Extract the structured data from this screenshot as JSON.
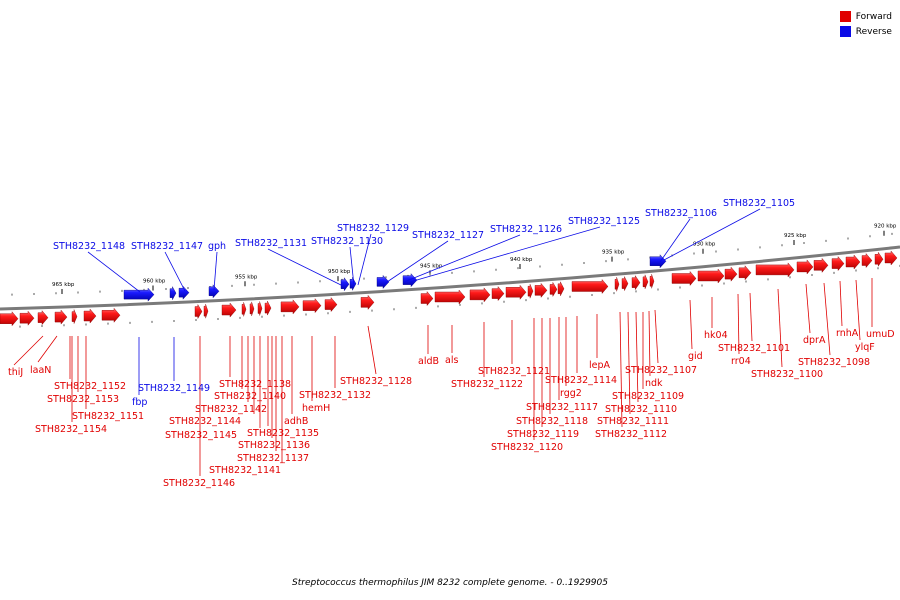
{
  "legend": {
    "forward_label": "Forward",
    "reverse_label": "Reverse",
    "forward_color": "#e00000",
    "reverse_color": "#0a0ae6"
  },
  "caption": "Streptococcus thermophilus JIM 8232 complete genome. - 0..1929905",
  "axis_ticks": [
    "965 kbp",
    "960 kbp",
    "955 kbp",
    "950 kbp",
    "945 kbp",
    "940 kbp",
    "935 kbp",
    "930 kbp",
    "925 kbp",
    "920 kbp"
  ],
  "reverse_genes": [
    "STH8232_1148",
    "STH8232_1147",
    "gph",
    "STH8232_1131",
    "STH8232_1130",
    "STH8232_1129",
    "STH8232_1127",
    "STH8232_1126",
    "STH8232_1125",
    "STH8232_1106",
    "STH8232_1105",
    "fbp",
    "STH8232_1149"
  ],
  "forward_genes": [
    "thiJ",
    "laaN",
    "STH8232_1152",
    "STH8232_1153",
    "STH8232_1151",
    "STH8232_1154",
    "STH8232_1138",
    "STH8232_1140",
    "STH8232_1142",
    "STH8232_1144",
    "STH8232_1145",
    "STH8232_1135",
    "STH8232_1136",
    "STH8232_1137",
    "STH8232_1141",
    "STH8232_1146",
    "adhB",
    "hemH",
    "STH8232_1132",
    "STH8232_1128",
    "aldB",
    "als",
    "STH8232_1122",
    "STH8232_1121",
    "STH8232_1114",
    "rgg2",
    "STH8232_1117",
    "STH8232_1118",
    "STH8232_1119",
    "STH8232_1120",
    "lepA",
    "STH8232_1107",
    "ndk",
    "STH8232_1109",
    "STH8232_1110",
    "STH8232_1111",
    "STH8232_1112",
    "gid",
    "hk04",
    "rr04",
    "STH8232_1101",
    "STH8232_1100",
    "dprA",
    "rnhA",
    "ylqF",
    "umuD",
    "STH8232_1098"
  ]
}
